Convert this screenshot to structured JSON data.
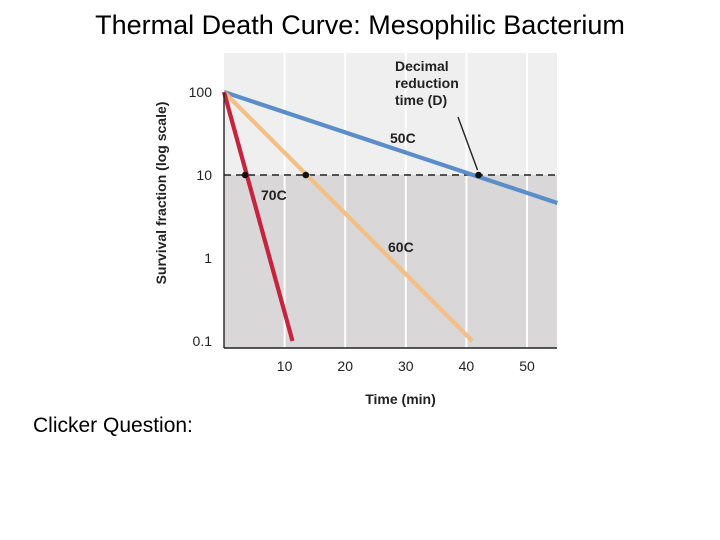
{
  "slide": {
    "title": "Thermal Death Curve: Mesophilic Bacterium",
    "caption": "Clicker Question:"
  },
  "chart_data": {
    "type": "line",
    "xlabel": "Time (min)",
    "ylabel": "Survival fraction (log scale)",
    "xlim": [
      0,
      55
    ],
    "ylim": [
      0.1,
      100
    ],
    "yscale": "log",
    "x_ticks": [
      10,
      20,
      30,
      40,
      50
    ],
    "y_ticks": [
      {
        "value": 100,
        "label": "100"
      },
      {
        "value": 10,
        "label": "10"
      },
      {
        "value": 1,
        "label": "1"
      },
      {
        "value": 0.1,
        "label": "0.1"
      }
    ],
    "grid": "vertical",
    "series": [
      {
        "name": "50C",
        "color": "#5b8ec8",
        "x": [
          0,
          55
        ],
        "y": [
          100,
          4.6
        ]
      },
      {
        "name": "60C",
        "color": "#f2bf85",
        "x": [
          0,
          41
        ],
        "y": [
          100,
          0.1
        ]
      },
      {
        "name": "70C",
        "color": "#c8233e",
        "x": [
          0,
          11.3
        ],
        "y": [
          100,
          0.1
        ]
      }
    ],
    "reference_line": {
      "y": 10,
      "style": "dashed"
    },
    "shaded_region": {
      "below_y": 10,
      "color": "#d9d7d8"
    },
    "markers": [
      {
        "x": 3.5,
        "y": 10
      },
      {
        "x": 13.5,
        "y": 10
      },
      {
        "x": 42,
        "y": 10
      }
    ],
    "annotations": [
      {
        "text_lines": [
          "Decimal",
          "reduction",
          "time (D)"
        ],
        "points_to": {
          "x": 42,
          "y": 10
        }
      }
    ]
  }
}
